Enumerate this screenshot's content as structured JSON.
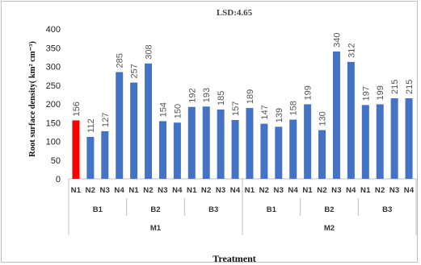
{
  "chart_data": {
    "type": "bar",
    "annotation": "LSD:4.65",
    "xlabel": "Treatment",
    "ylabel": "Root surface density( km² cm⁻³)",
    "ylim": [
      0,
      400
    ],
    "yticks": [
      0,
      50,
      100,
      150,
      200,
      250,
      300,
      350,
      400
    ],
    "grid": false,
    "categories": [
      "N1",
      "N2",
      "N3",
      "N4",
      "N1",
      "N2",
      "N3",
      "N4",
      "N1",
      "N2",
      "N3",
      "N4",
      "N1",
      "N2",
      "N3",
      "N4",
      "N1",
      "N2",
      "N3",
      "N4",
      "N1",
      "N2",
      "N3",
      "N4"
    ],
    "values": [
      156,
      112,
      127,
      285,
      257,
      308,
      154,
      150,
      192,
      193,
      185,
      157,
      189,
      147,
      139,
      158,
      199,
      130,
      340,
      312,
      197,
      199,
      215,
      215
    ],
    "data_labels": [
      "156",
      "112",
      "127",
      "285",
      "257",
      "308",
      "154",
      "150",
      "192",
      "193",
      "185",
      "157",
      "189",
      "147",
      "139",
      "158",
      "199",
      "130",
      "340",
      "312",
      "197",
      "199",
      "215",
      "215"
    ],
    "subgroups": [
      "B1",
      "B2",
      "B3",
      "B1",
      "B2",
      "B3"
    ],
    "groups": [
      "M1",
      "M2"
    ],
    "bar_color": "#4472c4",
    "highlight_index": 0,
    "highlight_color": "#ff0000"
  }
}
